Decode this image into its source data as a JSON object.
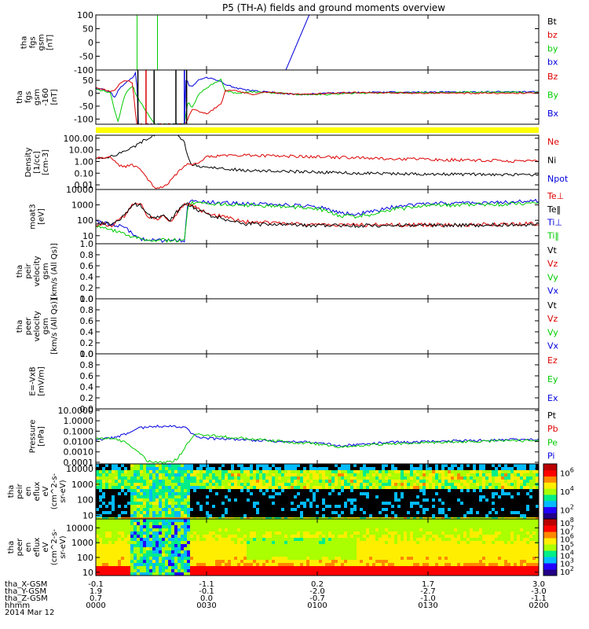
{
  "title": "P5 (TH-A) fields and ground moments overview",
  "footer": {
    "rows": [
      {
        "label": "tha_X-GSM",
        "values": [
          "-0.1",
          "-1.1",
          "0.2",
          "1.7",
          "3.0"
        ]
      },
      {
        "label": "tha_Y-GSM",
        "values": [
          "1.9",
          "-0.1",
          "-2.0",
          "-2.7",
          "-3.0"
        ]
      },
      {
        "label": "tha_Z-GSM",
        "values": [
          "0.7",
          "0.0",
          "-0.7",
          "-1.0",
          "-1.1"
        ]
      },
      {
        "label": "hhmm",
        "values": [
          "0000",
          "0030",
          "0100",
          "0130",
          "0200"
        ]
      }
    ],
    "date": "2014 Mar 12"
  },
  "colors": {
    "black": "#000000",
    "red": "#dd0000",
    "green": "#00cc00",
    "blue": "#0000dd",
    "yellow": "#ffff00"
  },
  "chart_data": [
    {
      "type": "line",
      "ylabel": [
        "tha",
        "fgs",
        "gsm",
        "[nT]"
      ],
      "ylim": [
        -100,
        100
      ],
      "yticks": [
        "100",
        "50",
        "0",
        "-50",
        "-100"
      ],
      "legend": [
        {
          "name": "Bt",
          "color": "black"
        },
        {
          "name": "bz",
          "color": "red"
        },
        {
          "name": "by",
          "color": "green"
        },
        {
          "name": "bx",
          "color": "blue"
        }
      ],
      "series": [
        {
          "name": "by",
          "color": "green",
          "x": [
            11.2,
            11.2
          ],
          "y": [
            -100,
            100
          ]
        },
        {
          "name": "by",
          "color": "green",
          "x": [
            16.7,
            16.7
          ],
          "y": [
            100,
            -100
          ]
        },
        {
          "name": "bx",
          "color": "blue",
          "x": [
            51.5,
            57.8
          ],
          "y": [
            -100,
            100
          ]
        }
      ]
    },
    {
      "type": "line",
      "ylabel": [
        "tha",
        "fgs",
        "gsm",
        "-160",
        "[nT]"
      ],
      "ylim": [
        -120,
        90
      ],
      "yticks": [
        "50",
        "0",
        "-50",
        "-100"
      ],
      "legend": [
        {
          "name": "Bz",
          "color": "red"
        },
        {
          "name": "By",
          "color": "green"
        },
        {
          "name": "Bx",
          "color": "blue"
        }
      ],
      "series": [
        {
          "name": "Bx",
          "color": "blue",
          "x": [
            0,
            2,
            4,
            5,
            6,
            8,
            10,
            11,
            11.5,
            12,
            16,
            20,
            24,
            24.5,
            25,
            26,
            28,
            30,
            32,
            34,
            35,
            38,
            42,
            46,
            50,
            56,
            62,
            70,
            80,
            90,
            100,
            110,
            120
          ],
          "y": [
            20,
            15,
            5,
            -20,
            10,
            40,
            60,
            85,
            -120,
            -120,
            -120,
            -120,
            -120,
            80,
            30,
            25,
            55,
            60,
            55,
            45,
            35,
            20,
            10,
            5,
            0,
            -5,
            0,
            3,
            4,
            4,
            5,
            5,
            5
          ]
        },
        {
          "name": "By",
          "color": "green",
          "x": [
            0,
            2,
            4,
            5,
            6,
            8,
            10,
            11,
            16,
            20,
            24,
            25,
            26,
            28,
            30,
            32,
            34,
            35,
            38,
            42,
            46,
            50,
            56,
            62,
            70,
            80,
            90,
            100,
            110,
            120
          ],
          "y": [
            15,
            10,
            0,
            -60,
            -110,
            0,
            30,
            -10,
            -120,
            -120,
            -120,
            -30,
            -60,
            0,
            20,
            40,
            55,
            10,
            0,
            5,
            3,
            0,
            -5,
            -5,
            0,
            2,
            2,
            3,
            3,
            3
          ]
        },
        {
          "name": "Bz",
          "color": "red",
          "x": [
            0,
            2,
            4,
            5,
            6,
            8,
            10,
            11,
            16,
            20,
            24,
            25,
            26,
            28,
            30,
            32,
            34,
            35,
            38,
            42,
            46,
            50,
            56,
            62,
            70,
            80,
            90,
            100,
            110,
            120
          ],
          "y": [
            20,
            15,
            5,
            10,
            30,
            50,
            40,
            -120,
            -120,
            -120,
            -120,
            -100,
            -60,
            -70,
            -80,
            -60,
            -40,
            10,
            10,
            -5,
            5,
            0,
            -5,
            0,
            2,
            1,
            1,
            0,
            0,
            0
          ]
        }
      ],
      "spikes": [
        {
          "x": 11.4,
          "color": "black"
        },
        {
          "x": 13.6,
          "color": "red"
        },
        {
          "x": 15.8,
          "color": "black"
        },
        {
          "x": 21.7,
          "color": "black"
        },
        {
          "x": 24.0,
          "color": "blue"
        },
        {
          "x": 24.6,
          "color": "black"
        }
      ]
    },
    {
      "type": "line",
      "ylog": true,
      "ylabel": [
        "Density",
        "[1/cc]",
        "[cm-3]"
      ],
      "ylim": [
        0.004,
        180
      ],
      "yticks": [
        "100.00",
        "10.00",
        "1.00",
        "0.10",
        "0.01"
      ],
      "legend": [
        {
          "name": "Ne",
          "color": "red"
        },
        {
          "name": "Ni",
          "color": "black"
        },
        {
          "name": "Npot",
          "color": "blue"
        }
      ],
      "series": [
        {
          "name": "Ni",
          "color": "black",
          "x": [
            0,
            2,
            4,
            6,
            8,
            10,
            12,
            14,
            16,
            18,
            20,
            22,
            24,
            25,
            26,
            30,
            40,
            60,
            80,
            100,
            120
          ],
          "y": [
            1.8,
            2,
            2.5,
            4,
            8,
            15,
            40,
            100,
            200,
            300,
            300,
            200,
            50,
            2,
            0.6,
            0.3,
            0.18,
            0.12,
            0.09,
            0.08,
            0.07
          ]
        },
        {
          "name": "Ne",
          "color": "red",
          "x": [
            0,
            2,
            4,
            5,
            6,
            8,
            10,
            12,
            14,
            16,
            18,
            20,
            22,
            24,
            25,
            26,
            28,
            30,
            40,
            60,
            80,
            100,
            120
          ],
          "y": [
            1.8,
            2,
            2.5,
            1,
            0.5,
            0.4,
            0.5,
            0.3,
            0.03,
            0.006,
            0.006,
            0.02,
            0.1,
            0.5,
            0.6,
            0.6,
            0.7,
            2.5,
            3.5,
            2.5,
            1.8,
            1.3,
            1
          ]
        }
      ]
    },
    {
      "type": "line",
      "ylog": true,
      "ylabel": [
        "moat3",
        "[eV]"
      ],
      "ylim": [
        3,
        10000
      ],
      "yticks": [
        "10000",
        "1000",
        "100",
        "10"
      ],
      "legend": [
        {
          "name": "Te⊥",
          "color": "red"
        },
        {
          "name": "Te‖",
          "color": "black"
        },
        {
          "name": "Ti⊥",
          "color": "blue"
        },
        {
          "name": "Ti‖",
          "color": "green"
        }
      ],
      "series": [
        {
          "name": "Ti",
          "color": "blue",
          "x": [
            0,
            2,
            4,
            6,
            8,
            10,
            12,
            14,
            16,
            18,
            20,
            22,
            24,
            25,
            26,
            30,
            40,
            50,
            60,
            66,
            70,
            75,
            80,
            90,
            100,
            110,
            120
          ],
          "y": [
            80,
            70,
            60,
            45,
            30,
            15,
            6,
            6,
            5,
            5,
            5,
            5,
            5,
            1500,
            1700,
            1500,
            1200,
            1000,
            800,
            300,
            250,
            350,
            700,
            1200,
            1300,
            1400,
            1800
          ]
        },
        {
          "name": "Ti",
          "color": "green",
          "x": [
            0,
            2,
            4,
            6,
            8,
            10,
            12,
            14,
            16,
            18,
            20,
            22,
            24,
            25,
            26,
            30,
            40,
            50,
            60,
            66,
            70,
            75,
            80,
            90,
            100,
            110,
            120
          ],
          "y": [
            40,
            30,
            25,
            18,
            12,
            8,
            6,
            6,
            5,
            5,
            5,
            5,
            5,
            1200,
            1400,
            1200,
            1000,
            800,
            600,
            200,
            180,
            250,
            500,
            900,
            1000,
            1100,
            1400
          ]
        },
        {
          "name": "Te",
          "color": "red",
          "x": [
            0,
            2,
            4,
            6,
            8,
            10,
            12,
            14,
            16,
            18,
            20,
            22,
            24,
            25,
            26,
            30,
            40,
            60,
            80,
            100,
            110,
            120
          ],
          "y": [
            50,
            60,
            40,
            90,
            200,
            1200,
            1200,
            200,
            100,
            200,
            80,
            300,
            1000,
            1200,
            900,
            300,
            80,
            50,
            50,
            50,
            55,
            60
          ]
        },
        {
          "name": "Te",
          "color": "black",
          "x": [
            0,
            2,
            4,
            6,
            8,
            10,
            12,
            14,
            16,
            18,
            20,
            22,
            24,
            25,
            26,
            30,
            40,
            60,
            80,
            100,
            110,
            120
          ],
          "y": [
            60,
            70,
            50,
            100,
            250,
            1000,
            1000,
            250,
            120,
            250,
            100,
            350,
            1100,
            1100,
            800,
            250,
            60,
            45,
            45,
            48,
            50,
            55
          ]
        }
      ]
    },
    {
      "type": "line",
      "ylabel": [
        "tha",
        "peir",
        "velocity",
        "gsm",
        "[km/s (All Qs)]"
      ],
      "ylim": [
        0,
        1
      ],
      "yticks": [
        "1.0",
        "0.8",
        "0.6",
        "0.4",
        "0.2",
        "0.0"
      ],
      "legend": [
        {
          "name": "Vt",
          "color": "black"
        },
        {
          "name": "Vz",
          "color": "red"
        },
        {
          "name": "Vy",
          "color": "green"
        },
        {
          "name": "Vx",
          "color": "blue"
        }
      ],
      "series": []
    },
    {
      "type": "line",
      "ylabel": [
        "tha",
        "peer",
        "velocity",
        "gsm",
        "[km/s (All Qs)]"
      ],
      "ylim": [
        0,
        1
      ],
      "yticks": [
        "1.0",
        "0.8",
        "0.6",
        "0.4",
        "0.2",
        "0.0"
      ],
      "legend": [
        {
          "name": "Vt",
          "color": "black"
        },
        {
          "name": "Vz",
          "color": "red"
        },
        {
          "name": "Vy",
          "color": "green"
        },
        {
          "name": "Vx",
          "color": "blue"
        }
      ],
      "series": []
    },
    {
      "type": "line",
      "ylabel": [
        "E=-VxB",
        "[mV/m]"
      ],
      "ylim": [
        0,
        1
      ],
      "yticks": [
        "1.0",
        "0.8",
        "0.6",
        "0.4",
        "0.2",
        "0.0"
      ],
      "legend": [
        {
          "name": "Ez",
          "color": "red"
        },
        {
          "name": "Ey",
          "color": "green"
        },
        {
          "name": "Ex",
          "color": "blue"
        }
      ],
      "series": []
    },
    {
      "type": "line",
      "ylog": true,
      "ylabel": [
        "Pressure",
        "[nPa]"
      ],
      "ylim": [
        7e-05,
        14
      ],
      "yticks": [
        "10.0000",
        "1.0000",
        "0.1000",
        "0.0100",
        "0.0010",
        "0.0001"
      ],
      "legend": [
        {
          "name": "Pt",
          "color": "black"
        },
        {
          "name": "Pb",
          "color": "red"
        },
        {
          "name": "Pe",
          "color": "green"
        },
        {
          "name": "Pi",
          "color": "blue"
        }
      ],
      "series": [
        {
          "name": "Pi",
          "color": "blue",
          "x": [
            0,
            4,
            8,
            10,
            12,
            16,
            20,
            24,
            26,
            28,
            30,
            40,
            50,
            60,
            66,
            70,
            80,
            90,
            100,
            110,
            120
          ],
          "y": [
            0.015,
            0.02,
            0.05,
            0.1,
            0.2,
            0.3,
            0.3,
            0.25,
            0.06,
            0.03,
            0.02,
            0.015,
            0.01,
            0.008,
            0.004,
            0.005,
            0.008,
            0.01,
            0.012,
            0.014,
            0.016
          ]
        },
        {
          "name": "Pe",
          "color": "green",
          "x": [
            0,
            4,
            8,
            10,
            12,
            14,
            16,
            20,
            22,
            24,
            26,
            28,
            30,
            40,
            50,
            60,
            66,
            70,
            80,
            90,
            100,
            110,
            120
          ],
          "y": [
            0.02,
            0.018,
            0.01,
            0.003,
            0.0008,
            0.00012,
            0.0001,
            0.0001,
            0.0002,
            0.002,
            0.03,
            0.05,
            0.04,
            0.02,
            0.01,
            0.006,
            0.003,
            0.004,
            0.006,
            0.008,
            0.01,
            0.011,
            0.012
          ]
        }
      ]
    },
    {
      "type": "heatmap",
      "ylog": true,
      "ylabel": [
        "tha",
        "peir",
        "en",
        "eflux",
        "eV",
        "(cm^2-s-",
        "sr-eV)"
      ],
      "ylim": [
        6,
        20000
      ],
      "yticks": [
        "10000",
        "1000",
        "100",
        "10"
      ],
      "colorbar_ticks": [
        "10^6",
        "10^4",
        "10^2"
      ],
      "z_range": [
        1,
        7
      ],
      "colorscale": [
        "#220088",
        "#2200ff",
        "#00bbff",
        "#00ee88",
        "#aaff00",
        "#ffee00",
        "#ff8800",
        "#ff0000",
        "#bb0000"
      ]
    },
    {
      "type": "heatmap",
      "ylog": true,
      "ylabel": [
        "tha",
        "peer",
        "en",
        "eflux",
        "eV",
        "(cm^2-s-",
        "sr-eV)"
      ],
      "ylim": [
        6,
        40000
      ],
      "yticks": [
        "10000",
        "1000",
        "100",
        "10"
      ],
      "colorbar_ticks": [
        "10^8",
        "10^7",
        "10^6",
        "10^5",
        "10^4",
        "10^3",
        "10^2"
      ],
      "z_range": [
        1.5,
        8.5
      ],
      "colorscale": [
        "#220088",
        "#2200ff",
        "#00bbff",
        "#00ee88",
        "#aaff00",
        "#ffee00",
        "#ff8800",
        "#ff0000",
        "#bb0000"
      ]
    }
  ]
}
